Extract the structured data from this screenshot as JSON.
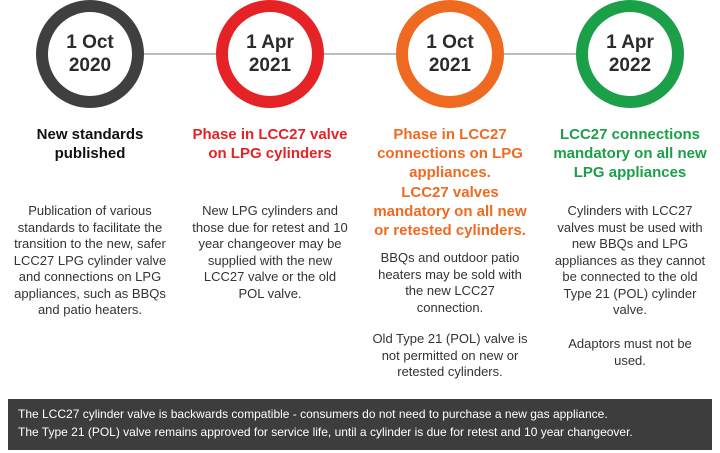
{
  "colors": {
    "gray": "#3f3f3f",
    "red": "#e52326",
    "orange": "#ef6a21",
    "green": "#1b9f48",
    "footer_bg": "#3d3d3d"
  },
  "milestones": [
    {
      "date_line1": "1 Oct",
      "date_line2": "2020",
      "title": "New standards published",
      "body": "Publication of various standards to facilitate the transition to the new, safer LCC27 LPG cylinder valve and connections on LPG appliances, such as BBQs and patio heaters."
    },
    {
      "date_line1": "1 Apr",
      "date_line2": "2021",
      "title": "Phase in LCC27 valve on LPG cylinders",
      "body": "New LPG cylinders and those due for retest and 10 year changeover may be supplied with the new LCC27 valve or the old POL valve."
    },
    {
      "date_line1": "1 Oct",
      "date_line2": "2021",
      "title": "Phase in LCC27 connections on LPG appliances.",
      "subtitle": "LCC27 valves mandatory on all new or retested cylinders.",
      "body": "BBQs and outdoor patio heaters may be sold with the new LCC27 connection.",
      "body2": "Old Type 21 (POL) valve is not permitted on new or retested cylinders."
    },
    {
      "date_line1": "1 Apr",
      "date_line2": "2022",
      "title": "LCC27 connections mandatory on all new LPG appliances",
      "body": "Cylinders with LCC27 valves must be used with new BBQs and LPG appliances as they cannot be connected to the old Type 21 (POL) cylinder valve.",
      "body2": "Adaptors must not be used."
    }
  ],
  "footer": {
    "line1": "The LCC27 cylinder valve is backwards compatible - consumers do not need to purchase a new gas appliance.",
    "line2": "The Type 21 (POL) valve remains approved for service life, until a cylinder is due for retest and 10 year changeover."
  }
}
